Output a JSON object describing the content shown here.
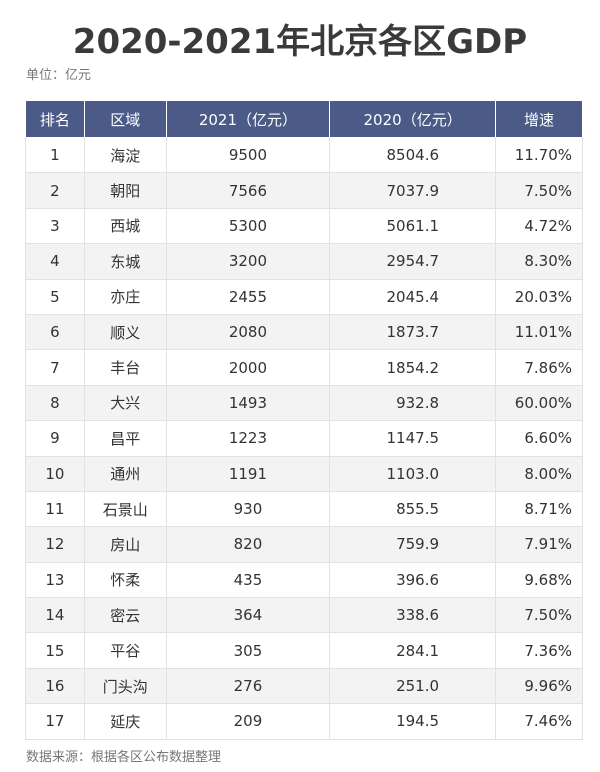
{
  "header": {
    "title": "2020-2021年北京各区GDP",
    "unit": "单位：亿元"
  },
  "table": {
    "columns": [
      "排名",
      "区域",
      "2021（亿元）",
      "2020（亿元）",
      "增速"
    ],
    "rows": [
      [
        "1",
        "海淀",
        "9500",
        "8504.6",
        "11.70%"
      ],
      [
        "2",
        "朝阳",
        "7566",
        "7037.9",
        "7.50%"
      ],
      [
        "3",
        "西城",
        "5300",
        "5061.1",
        "4.72%"
      ],
      [
        "4",
        "东城",
        "3200",
        "2954.7",
        "8.30%"
      ],
      [
        "5",
        "亦庄",
        "2455",
        "2045.4",
        "20.03%"
      ],
      [
        "6",
        "顺义",
        "2080",
        "1873.7",
        "11.01%"
      ],
      [
        "7",
        "丰台",
        "2000",
        "1854.2",
        "7.86%"
      ],
      [
        "8",
        "大兴",
        "1493",
        "932.8",
        "60.00%"
      ],
      [
        "9",
        "昌平",
        "1223",
        "1147.5",
        "6.60%"
      ],
      [
        "10",
        "通州",
        "1191",
        "1103.0",
        "8.00%"
      ],
      [
        "11",
        "石景山",
        "930",
        "855.5",
        "8.71%"
      ],
      [
        "12",
        "房山",
        "820",
        "759.9",
        "7.91%"
      ],
      [
        "13",
        "怀柔",
        "435",
        "396.6",
        "9.68%"
      ],
      [
        "14",
        "密云",
        "364",
        "338.6",
        "7.50%"
      ],
      [
        "15",
        "平谷",
        "305",
        "284.1",
        "7.36%"
      ],
      [
        "16",
        "门头沟",
        "276",
        "251.0",
        "9.96%"
      ],
      [
        "17",
        "延庆",
        "209",
        "194.5",
        "7.46%"
      ]
    ]
  },
  "footer": {
    "source": "数据来源：根据各区公布数据整理"
  }
}
